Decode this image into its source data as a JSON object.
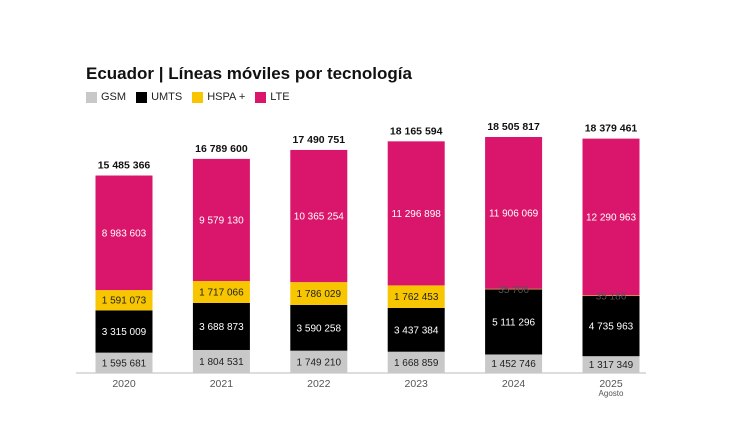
{
  "chart_data": {
    "type": "bar",
    "stacked": true,
    "title": "Ecuador | Líneas móviles por tecnología",
    "xlabel": "",
    "ylabel": "",
    "categories": [
      "2020",
      "2021",
      "2022",
      "2023",
      "2024",
      "2025"
    ],
    "category_sublabels": [
      "",
      "",
      "",
      "",
      "",
      "Agosto"
    ],
    "series": [
      {
        "name": "GSM",
        "color": "#c8c8c8",
        "text_color": "#222222",
        "values": [
          1595681,
          1804531,
          1749210,
          1668859,
          1452746,
          1317349
        ],
        "labels": [
          "1 595 681",
          "1 804 531",
          "1 749 210",
          "1 668 859",
          "1 452 746",
          "1 317 349"
        ]
      },
      {
        "name": "UMTS",
        "color": "#000000",
        "text_color": "#ffffff",
        "values": [
          3315009,
          3688873,
          3590258,
          3437384,
          5111296,
          4735963
        ],
        "labels": [
          "3 315 009",
          "3 688 873",
          "3 590 258",
          "3 437 384",
          "5 111 296",
          "4 735 963"
        ]
      },
      {
        "name": "HSPA +",
        "color": "#f7c600",
        "text_color": "#222222",
        "values": [
          1591073,
          1717066,
          1786029,
          1762453,
          35706,
          35186
        ],
        "labels": [
          "1 591 073",
          "1 717 066",
          "1 786 029",
          "1 762 453",
          "35 706",
          "35 186"
        ]
      },
      {
        "name": "LTE",
        "color": "#d9166b",
        "text_color": "#ffffff",
        "values": [
          8983603,
          9579130,
          10365254,
          11296898,
          11906069,
          12290963
        ],
        "labels": [
          "8 983 603",
          "9 579 130",
          "10 365 254",
          "11 296 898",
          "11 906 069",
          "12 290 963"
        ]
      }
    ],
    "totals": [
      "15 485 366",
      "16 789 600",
      "17 490 751",
      "18 165 594",
      "18 505 817",
      "18 379 461"
    ],
    "ylim": [
      0,
      18505817
    ],
    "grid": false,
    "legend_position": "top-left"
  }
}
